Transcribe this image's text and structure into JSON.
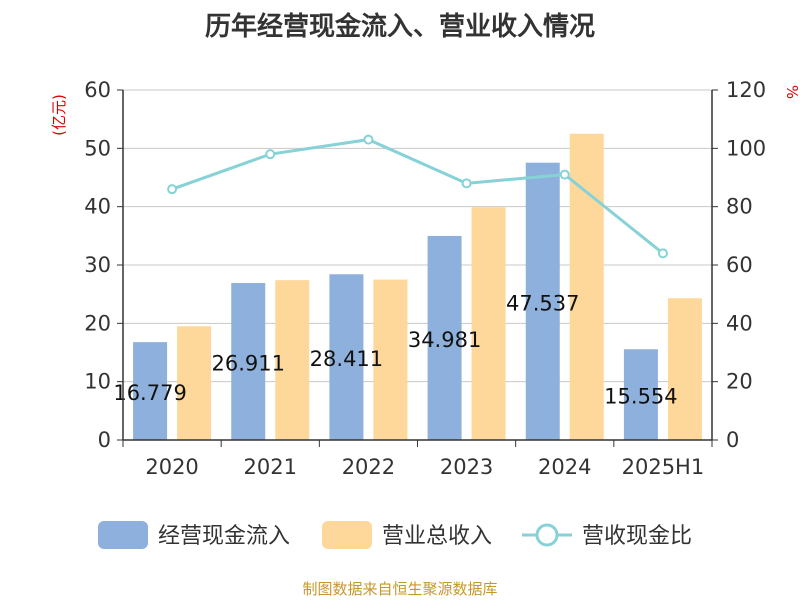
{
  "chart_data": {
    "type": "bar",
    "title": "历年经营现金流入、营业收入情况",
    "categories": [
      "2020",
      "2021",
      "2022",
      "2023",
      "2024",
      "2025H1"
    ],
    "series": [
      {
        "name": "经营现金流入",
        "type": "bar",
        "axis": "left",
        "color": "#8eb0dc",
        "values": [
          16.779,
          26.911,
          28.411,
          34.981,
          47.537,
          15.554
        ],
        "labels": [
          "16.779",
          "26.911",
          "28.411",
          "34.981",
          "47.537",
          "15.554"
        ]
      },
      {
        "name": "营业总收入",
        "type": "bar",
        "axis": "left",
        "color": "#fdd89a",
        "values": [
          19.5,
          27.4,
          27.5,
          39.9,
          52.5,
          24.3
        ]
      },
      {
        "name": "营收现金比",
        "type": "line",
        "axis": "right",
        "color": "#86d2d7",
        "values": [
          86,
          98,
          103,
          88,
          91,
          64
        ]
      }
    ],
    "left_axis": {
      "unit": "(亿元)",
      "ylim": [
        0,
        60
      ],
      "ticks": [
        "0",
        "10",
        "20",
        "30",
        "40",
        "50",
        "60"
      ]
    },
    "right_axis": {
      "unit": "%",
      "ylim": [
        0,
        120
      ],
      "ticks": [
        "0",
        "20",
        "40",
        "60",
        "80",
        "100",
        "120"
      ]
    },
    "grid": true,
    "legend_position": "bottom"
  },
  "source": "制图数据来自恒生聚源数据库"
}
